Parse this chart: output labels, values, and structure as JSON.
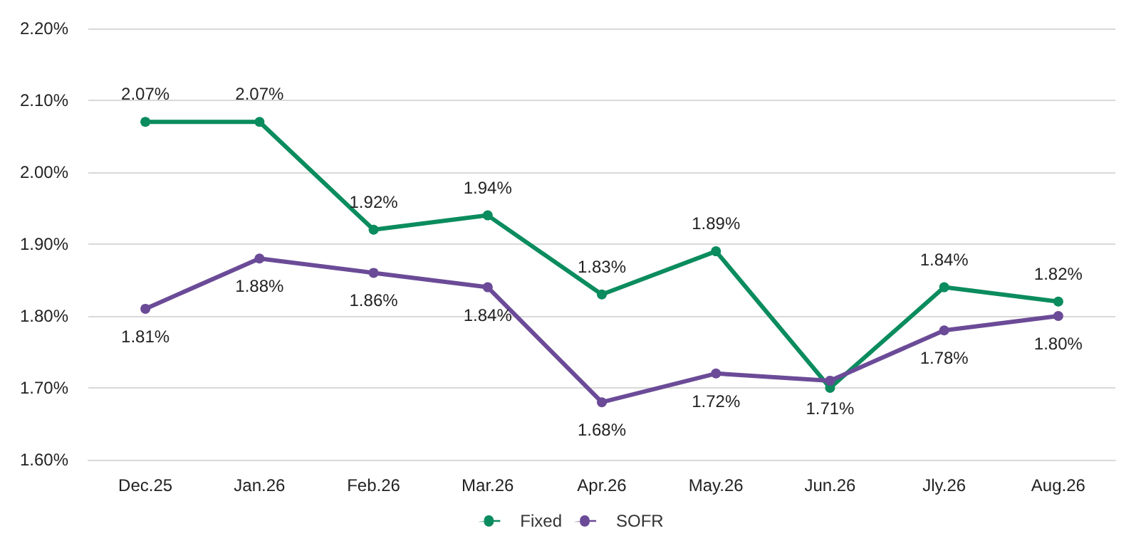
{
  "chart_data": {
    "type": "line",
    "categories": [
      "Dec.25",
      "Jan.26",
      "Feb.26",
      "Mar.26",
      "Apr.26",
      "May.26",
      "Jun.26",
      "Jly.26",
      "Aug.26"
    ],
    "series": [
      {
        "name": "Fixed",
        "color": "#0b8c5e",
        "values": [
          2.07,
          2.07,
          1.92,
          1.94,
          1.83,
          1.89,
          1.7,
          1.84,
          1.82
        ],
        "value_labels": [
          "2.07%",
          "2.07%",
          "1.92%",
          "1.94%",
          "1.83%",
          "1.89%",
          null,
          "1.84%",
          "1.82%"
        ]
      },
      {
        "name": "SOFR",
        "color": "#6b4b97",
        "values": [
          1.81,
          1.88,
          1.86,
          1.84,
          1.68,
          1.72,
          1.71,
          1.78,
          1.8
        ],
        "value_labels": [
          "1.81%",
          "1.88%",
          "1.86%",
          "1.84%",
          "1.68%",
          "1.72%",
          "1.71%",
          "1.78%",
          "1.80%"
        ]
      }
    ],
    "ylim": [
      1.6,
      2.2
    ],
    "yticks": [
      {
        "value": 1.6,
        "label": "1.60%"
      },
      {
        "value": 1.7,
        "label": "1.70%"
      },
      {
        "value": 1.8,
        "label": "1.80%"
      },
      {
        "value": 1.9,
        "label": "1.90%"
      },
      {
        "value": 2.0,
        "label": "2.00%"
      },
      {
        "value": 2.1,
        "label": "2.10%"
      },
      {
        "value": 2.2,
        "label": "2.20%"
      }
    ],
    "grid": "y",
    "legend": "bottom",
    "marker": "circle",
    "line_style": "solid"
  }
}
